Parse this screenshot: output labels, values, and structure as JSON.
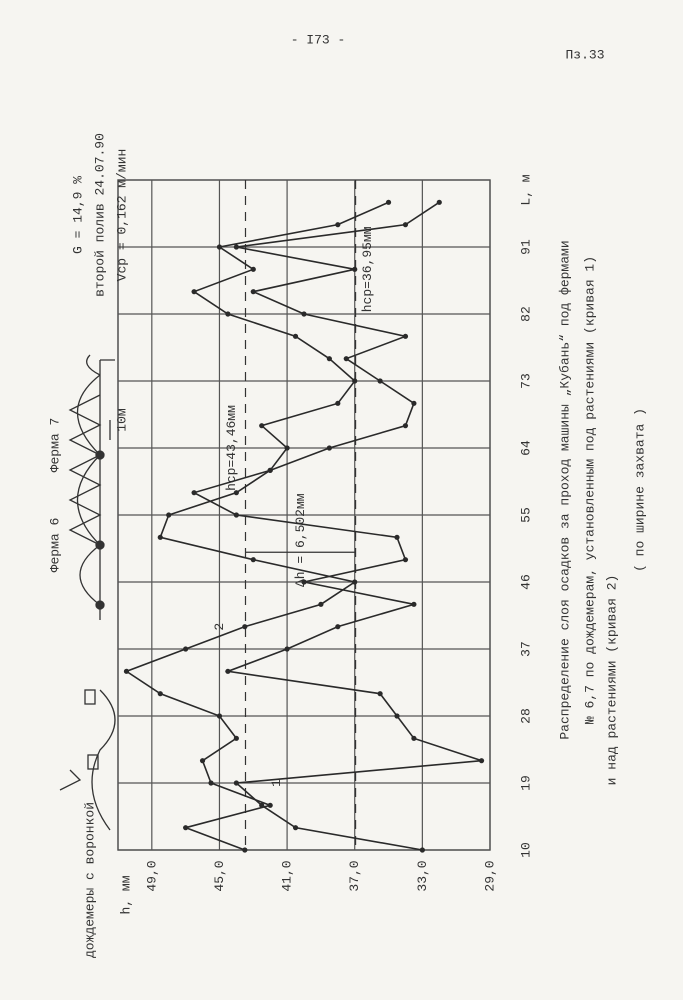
{
  "page": {
    "number": "- I73 -",
    "ref": "Пз.33"
  },
  "diagram": {
    "farm6": "Ферма 6",
    "farm7": "Ферма 7",
    "span": "10м",
    "gauges": "дождемеры с воронкой"
  },
  "chart_data": {
    "type": "line",
    "params": [
      "G = 14,9 %",
      "второй полив 24.07.90",
      "Vср = 0,162 м/мин"
    ],
    "caption": [
      "Распределение слоя осадков за проход машины „Кубань“ под фермами",
      "№ 6,7 по дождемерам, установленным под растениями (кривая 1)",
      "и над растениями (кривая 2)",
      "( по ширине захвата )"
    ],
    "xlabel": "L, м",
    "ylabel": "h, мм",
    "x": [
      10,
      13,
      16,
      19,
      22,
      25,
      28,
      31,
      34,
      37,
      40,
      43,
      46,
      49,
      52,
      55,
      58,
      61,
      64,
      67,
      70,
      73,
      76,
      79,
      82,
      85,
      88,
      91,
      94,
      97
    ],
    "series": [
      {
        "name": "1",
        "color": "#2a2a2a",
        "values": [
          33.0,
          40.5,
          42.5,
          44.0,
          29.5,
          33.5,
          34.5,
          35.5,
          44.5,
          41.0,
          38.0,
          33.5,
          40.0,
          34.0,
          34.5,
          44.0,
          46.5,
          42.0,
          38.5,
          34.0,
          33.5,
          35.5,
          37.5,
          34.0,
          40.0,
          43.0,
          37.0,
          44.0,
          34.0,
          32.0
        ]
      },
      {
        "name": "2",
        "color": "#2a2a2a",
        "values": [
          43.5,
          47.0,
          42.0,
          45.5,
          46.0,
          44.0,
          45.0,
          48.5,
          50.5,
          47.0,
          43.5,
          39.0,
          37.0,
          43.0,
          48.5,
          48.0,
          44.0,
          42.0,
          41.0,
          42.5,
          38.0,
          37.0,
          38.5,
          40.5,
          44.5,
          46.5,
          43.0,
          45.0,
          38.0,
          35.0
        ]
      }
    ],
    "ref_lines": [
      {
        "value": 43.46,
        "label": "hср=43,46мм"
      },
      {
        "value": 36.95,
        "label": "hср=36,95мм"
      }
    ],
    "delta": {
      "value": 6.502,
      "label": "Δh = 6,502мм"
    },
    "xlim": [
      10,
      100
    ],
    "xticks": [
      10,
      19,
      28,
      37,
      46,
      55,
      64,
      73,
      82,
      91
    ],
    "ylim": [
      29,
      51
    ],
    "yticks": [
      {
        "value": 29,
        "label": "29,0"
      },
      {
        "value": 33,
        "label": "33,0"
      },
      {
        "value": 37,
        "label": "37,0"
      },
      {
        "value": 41,
        "label": "41,0"
      },
      {
        "value": 45,
        "label": "45,0"
      },
      {
        "value": 49,
        "label": "49,0"
      }
    ],
    "grid": true,
    "markers": true
  }
}
